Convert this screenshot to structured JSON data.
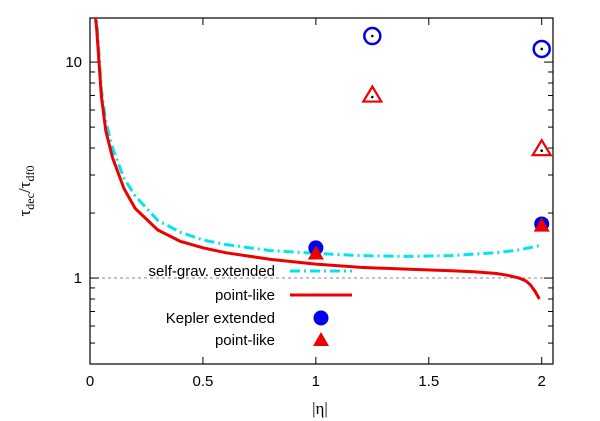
{
  "chart_data": {
    "type": "line",
    "xlabel": "|η|",
    "ylabel": "τdec/τdf0",
    "ylabel_parts": {
      "main": "τ",
      "sub1": "dec",
      "slash": "/",
      "main2": "τ",
      "sub2": "df0"
    },
    "xlim": [
      0,
      2.05
    ],
    "ylim": [
      0.4,
      16
    ],
    "yscale": "log",
    "x_ticks": [
      {
        "value": 0,
        "label": "0"
      },
      {
        "value": 0.5,
        "label": "0.5"
      },
      {
        "value": 1,
        "label": "1"
      },
      {
        "value": 1.5,
        "label": "1.5"
      },
      {
        "value": 2,
        "label": "2"
      }
    ],
    "y_ticks": [
      {
        "value": 1,
        "label": "1"
      },
      {
        "value": 10,
        "label": "10"
      }
    ],
    "reference_line": {
      "y": 1,
      "style": "dashed",
      "color": "#888888"
    },
    "legend": {
      "placement": "bottom-left",
      "entries": [
        {
          "label": "self-grav. extended",
          "series": "self_grav_extended"
        },
        {
          "label": "point-like",
          "series": "self_grav_point"
        },
        {
          "label": "Kepler extended",
          "series": "kepler_extended"
        },
        {
          "label": "point-like",
          "series": "kepler_point"
        }
      ]
    },
    "series": [
      {
        "id": "self_grav_extended",
        "style": "dash-dot",
        "color": "#00e5ee",
        "x": [
          0.02,
          0.03,
          0.04,
          0.05,
          0.07,
          0.1,
          0.15,
          0.2,
          0.3,
          0.4,
          0.5,
          0.6,
          0.8,
          1.0,
          1.2,
          1.4,
          1.6,
          1.8,
          1.9,
          2.0
        ],
        "y": [
          18,
          15.5,
          11,
          7.5,
          5.3,
          4.0,
          2.9,
          2.4,
          1.85,
          1.63,
          1.5,
          1.43,
          1.34,
          1.3,
          1.27,
          1.26,
          1.27,
          1.31,
          1.35,
          1.42
        ]
      },
      {
        "id": "self_grav_point",
        "style": "solid",
        "color": "#ee0000",
        "x": [
          0.02,
          0.03,
          0.04,
          0.05,
          0.07,
          0.1,
          0.15,
          0.2,
          0.3,
          0.4,
          0.5,
          0.6,
          0.8,
          1.0,
          1.2,
          1.4,
          1.6,
          1.7,
          1.8,
          1.85,
          1.9,
          1.93,
          1.95,
          1.97,
          1.99
        ],
        "y": [
          18,
          14,
          10,
          7.0,
          4.8,
          3.6,
          2.6,
          2.1,
          1.67,
          1.48,
          1.38,
          1.31,
          1.22,
          1.16,
          1.12,
          1.1,
          1.08,
          1.07,
          1.05,
          1.03,
          1.0,
          0.97,
          0.93,
          0.87,
          0.8
        ]
      },
      {
        "id": "kepler_extended",
        "marker": "circle",
        "color": "#0000ee",
        "x": [
          1.0,
          2.0
        ],
        "y": [
          1.38,
          1.78
        ]
      },
      {
        "id": "kepler_point",
        "marker": "triangle",
        "color": "#ee0000",
        "x": [
          1.0,
          2.0
        ],
        "y": [
          1.3,
          1.75
        ]
      },
      {
        "id": "open_circles",
        "marker": "circle-open-dot",
        "color": "#0000ee",
        "x": [
          1.25,
          2.0
        ],
        "y": [
          13.2,
          11.5
        ]
      },
      {
        "id": "open_triangles",
        "marker": "triangle-open-dot",
        "color": "#ee0000",
        "x": [
          1.25,
          2.0
        ],
        "y": [
          7.0,
          3.95
        ]
      }
    ]
  }
}
